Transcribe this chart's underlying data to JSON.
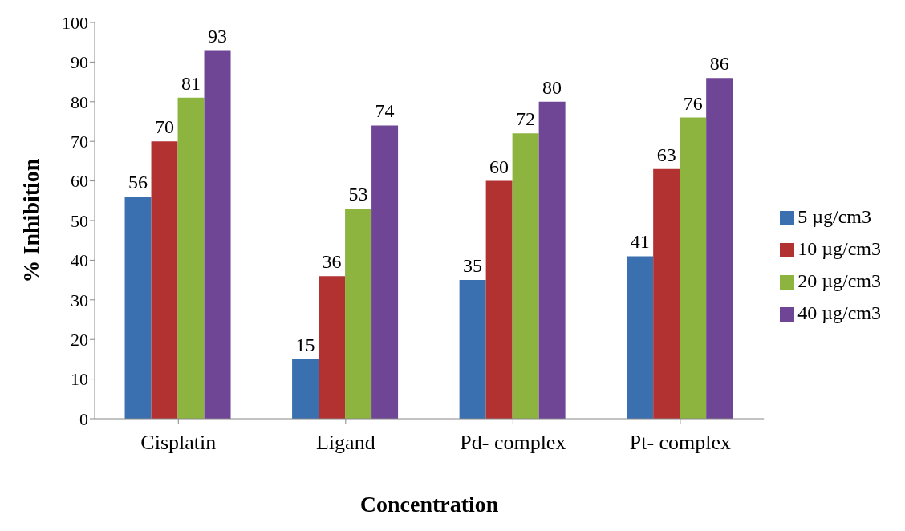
{
  "chart_data": {
    "type": "bar",
    "xlabel": "Concentration",
    "ylabel": "% Inhibition",
    "categories": [
      "Cisplatin",
      "Ligand",
      "Pd- complex",
      "Pt- complex"
    ],
    "series": [
      {
        "name": "5 µg/cm3",
        "color": "#3a6fb0",
        "values": [
          56,
          15,
          35,
          41
        ]
      },
      {
        "name": "10 µg/cm3",
        "color": "#b23232",
        "values": [
          70,
          36,
          60,
          63
        ]
      },
      {
        "name": "20 µg/cm3",
        "color": "#8db43e",
        "values": [
          81,
          53,
          72,
          76
        ]
      },
      {
        "name": "40 µg/cm3",
        "color": "#6f4596",
        "values": [
          93,
          74,
          80,
          86
        ]
      }
    ],
    "ylim": [
      0,
      100
    ],
    "yticks": [
      0,
      10,
      20,
      30,
      40,
      50,
      60,
      70,
      80,
      90,
      100
    ],
    "data_labels": true,
    "legend": "right"
  }
}
